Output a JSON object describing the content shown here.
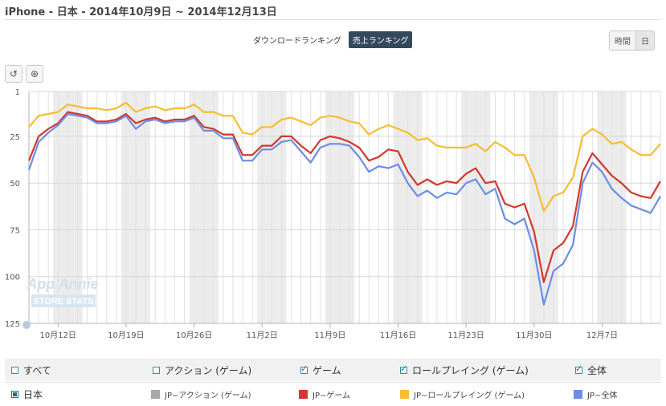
{
  "title": "iPhone - 日本 - 2014年10月9日 ~ 2014年12月13日",
  "ranking_tabs": [
    {
      "label": "ダウンロードランキング",
      "active": false
    },
    {
      "label": "売上ランキング",
      "active": true
    }
  ],
  "period_buttons": [
    "時間",
    "日"
  ],
  "tools": {
    "reset_icon": "rotate-ccw-icon",
    "zoom_icon": "zoom-icon"
  },
  "watermark": {
    "line1": "App Annie",
    "line2": "STORE STATS"
  },
  "chart_data": {
    "type": "line",
    "y_reversed": true,
    "ylim": [
      1,
      125
    ],
    "y_ticks": [
      "1",
      "25",
      "50",
      "75",
      "100",
      "125"
    ],
    "x_count": 66,
    "x_tick_labels": [
      {
        "index": 3,
        "label": "10月12日"
      },
      {
        "index": 10,
        "label": "10月19日"
      },
      {
        "index": 17,
        "label": "10月26日"
      },
      {
        "index": 24,
        "label": "11月2日"
      },
      {
        "index": 31,
        "label": "11月9日"
      },
      {
        "index": 38,
        "label": "11月16日"
      },
      {
        "index": 45,
        "label": "11月23日"
      },
      {
        "index": 52,
        "label": "11月30日"
      },
      {
        "index": 59,
        "label": "12月7日"
      }
    ],
    "weekend_bands": [
      [
        3,
        5
      ],
      [
        10,
        12
      ],
      [
        17,
        19
      ],
      [
        24,
        26
      ],
      [
        31,
        33
      ],
      [
        38,
        40
      ],
      [
        45,
        47
      ],
      [
        52,
        54
      ],
      [
        59,
        61
      ]
    ],
    "series": [
      {
        "name": "JP−ロールプレイング (ゲーム)",
        "color": "#f6bd2f",
        "values": [
          20,
          14,
          13,
          12,
          8,
          9,
          10,
          10,
          11,
          10,
          7,
          12,
          10,
          9,
          11,
          10,
          10,
          8,
          12,
          12,
          14,
          14,
          23,
          24,
          20,
          20,
          16,
          15,
          17,
          19,
          15,
          14,
          15,
          17,
          18,
          24,
          21,
          19,
          21,
          23,
          27,
          26,
          30,
          31,
          31,
          31,
          29,
          33,
          28,
          31,
          35,
          35,
          47,
          65,
          57,
          55,
          47,
          25,
          21,
          24,
          29,
          28,
          32,
          35,
          35,
          29
        ]
      },
      {
        "name": "JP−ゲーム",
        "color": "#d2382b",
        "values": [
          38,
          25,
          21,
          18,
          12,
          13,
          14,
          17,
          17,
          16,
          13,
          18,
          16,
          15,
          17,
          16,
          16,
          14,
          20,
          21,
          24,
          24,
          35,
          35,
          30,
          30,
          25,
          25,
          30,
          34,
          27,
          25,
          26,
          28,
          31,
          38,
          36,
          32,
          33,
          44,
          51,
          48,
          51,
          49,
          50,
          45,
          42,
          50,
          49,
          61,
          63,
          61,
          76,
          103,
          86,
          82,
          73,
          44,
          34,
          40,
          46,
          50,
          55,
          57,
          58,
          49
        ]
      },
      {
        "name": "JP−全体",
        "color": "#6c8de7",
        "values": [
          43,
          28,
          23,
          19,
          13,
          14,
          15,
          18,
          18,
          17,
          14,
          21,
          17,
          16,
          18,
          17,
          17,
          15,
          22,
          22,
          26,
          26,
          38,
          38,
          32,
          32,
          28,
          27,
          33,
          39,
          31,
          29,
          29,
          30,
          36,
          44,
          41,
          42,
          40,
          50,
          57,
          54,
          58,
          55,
          56,
          50,
          48,
          56,
          53,
          69,
          72,
          69,
          86,
          115,
          97,
          93,
          83,
          50,
          39,
          44,
          53,
          58,
          62,
          64,
          66,
          57
        ]
      }
    ]
  },
  "legend": {
    "filters": [
      {
        "label": "すべて",
        "checked": false
      },
      {
        "label": "アクション (ゲーム)",
        "checked": false
      },
      {
        "label": "ゲーム",
        "checked": true
      },
      {
        "label": "ロールプレイング (ゲーム)",
        "checked": true
      },
      {
        "label": "全体",
        "checked": true
      }
    ],
    "country": "日本",
    "series_keys": [
      {
        "label": "JP−アクション (ゲーム)",
        "color": "#a8a8a8"
      },
      {
        "label": "JP−ゲーム",
        "color": "#d2382b"
      },
      {
        "label": "JP−ロールプレイング (ゲーム)",
        "color": "#f6bd2f"
      },
      {
        "label": "JP−全体",
        "color": "#6c8de7"
      }
    ]
  }
}
